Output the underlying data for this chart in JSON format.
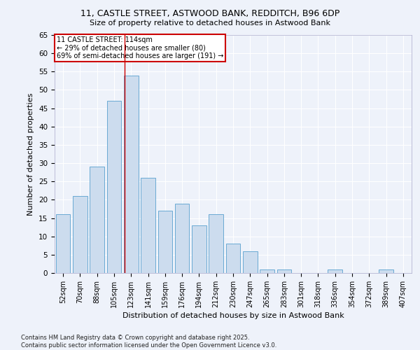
{
  "title_line1": "11, CASTLE STREET, ASTWOOD BANK, REDDITCH, B96 6DP",
  "title_line2": "Size of property relative to detached houses in Astwood Bank",
  "xlabel": "Distribution of detached houses by size in Astwood Bank",
  "ylabel": "Number of detached properties",
  "categories": [
    "52sqm",
    "70sqm",
    "88sqm",
    "105sqm",
    "123sqm",
    "141sqm",
    "159sqm",
    "176sqm",
    "194sqm",
    "212sqm",
    "230sqm",
    "247sqm",
    "265sqm",
    "283sqm",
    "301sqm",
    "318sqm",
    "336sqm",
    "354sqm",
    "372sqm",
    "389sqm",
    "407sqm"
  ],
  "values": [
    16,
    21,
    29,
    47,
    54,
    26,
    17,
    19,
    13,
    16,
    8,
    6,
    1,
    1,
    0,
    0,
    1,
    0,
    0,
    1,
    0
  ],
  "bar_color": "#ccdcee",
  "bar_edge_color": "#6aaad4",
  "background_color": "#eef2fa",
  "grid_color": "#ffffff",
  "annotation_text": "11 CASTLE STREET: 114sqm\n← 29% of detached houses are smaller (80)\n69% of semi-detached houses are larger (191) →",
  "annotation_box_color": "#ffffff",
  "annotation_border_color": "#cc0000",
  "vline_color": "#cc0000",
  "vline_position": 3.62,
  "ylim": [
    0,
    65
  ],
  "yticks": [
    0,
    5,
    10,
    15,
    20,
    25,
    30,
    35,
    40,
    45,
    50,
    55,
    60,
    65
  ],
  "footer_line1": "Contains HM Land Registry data © Crown copyright and database right 2025.",
  "footer_line2": "Contains public sector information licensed under the Open Government Licence v3.0."
}
